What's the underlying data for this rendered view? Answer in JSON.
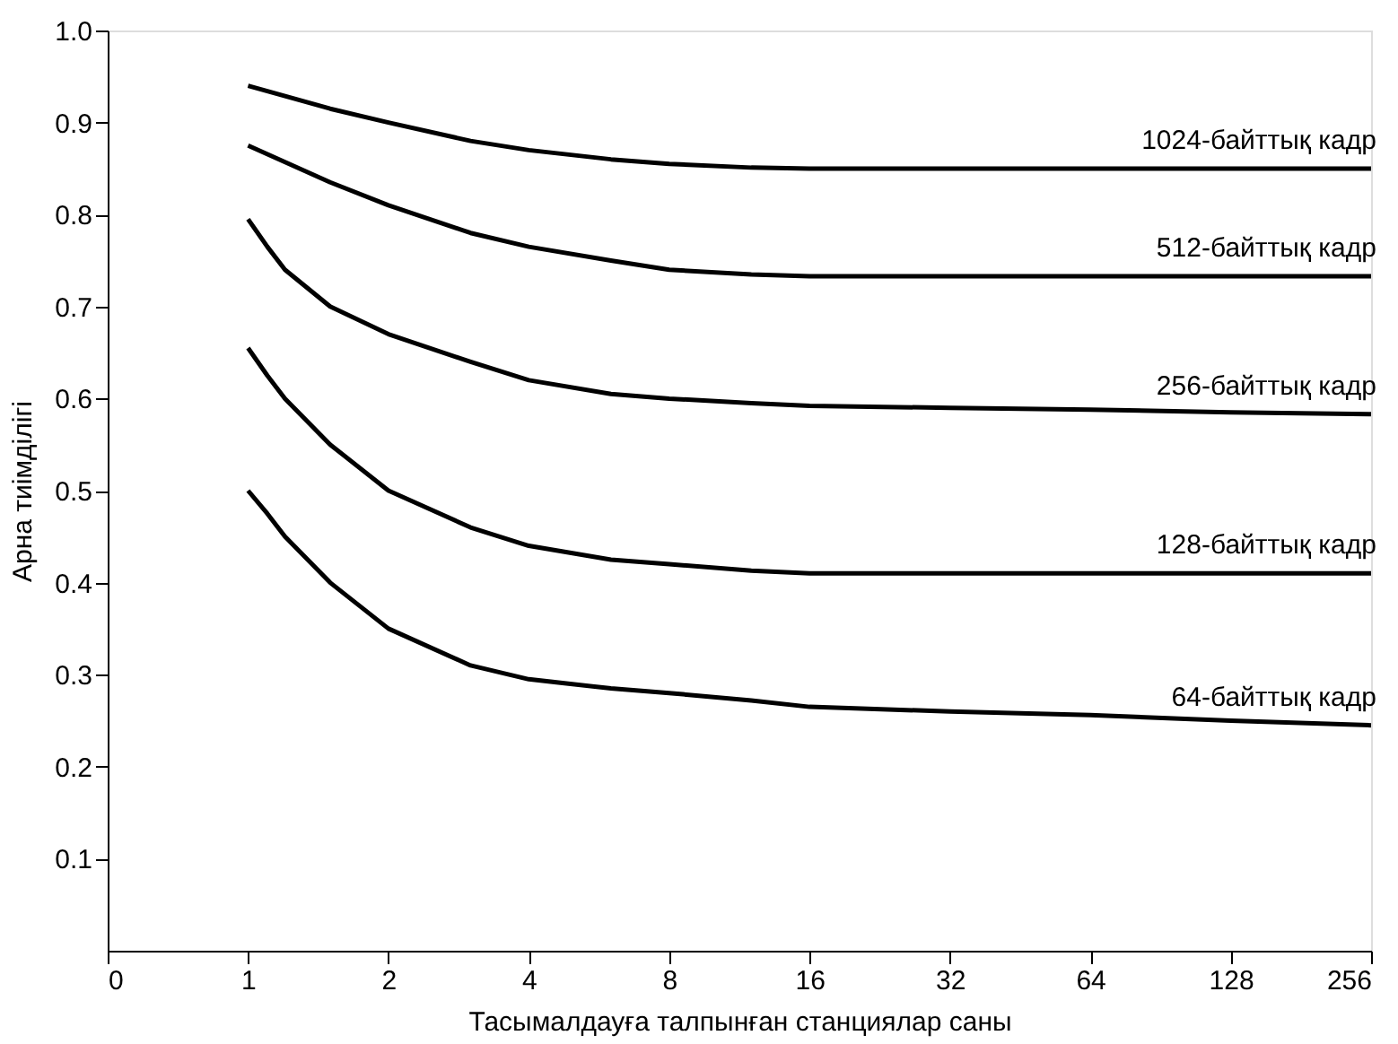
{
  "chart_data": {
    "type": "line",
    "xlabel": "Тасымалдауға талпынған станциялар саны",
    "ylabel": "Арна тиімділігі",
    "log": "x",
    "xlim": [
      0.5,
      256
    ],
    "xticks": [
      {
        "value": 0.5,
        "label": "0"
      },
      1,
      2,
      4,
      8,
      16,
      32,
      64,
      128,
      256
    ],
    "ylim": [
      0,
      1
    ],
    "yticks": [
      {
        "value": 0.1,
        "label": "0.1"
      },
      {
        "value": 0.2,
        "label": "0.2"
      },
      {
        "value": 0.3,
        "label": "0.3"
      },
      {
        "value": 0.4,
        "label": "0.4"
      },
      {
        "value": 0.5,
        "label": "0.5"
      },
      {
        "value": 0.6,
        "label": "0.6"
      },
      {
        "value": 0.7,
        "label": "0.7"
      },
      {
        "value": 0.8,
        "label": "0.8"
      },
      {
        "value": 0.9,
        "label": "0.9"
      },
      {
        "value": 1,
        "label": "1.0"
      }
    ],
    "grid": false,
    "marker": "none",
    "line_style": "solid",
    "series": [
      {
        "name": "1024-байттық кадр",
        "color": "#000000",
        "x": [
          1,
          1.5,
          2,
          3,
          4,
          6,
          8,
          12,
          16,
          32,
          64,
          128,
          256
        ],
        "values": [
          0.94,
          0.915,
          0.9,
          0.88,
          0.87,
          0.86,
          0.855,
          0.851,
          0.85,
          0.85,
          0.85,
          0.85,
          0.85
        ]
      },
      {
        "name": "512-байттық кадр",
        "color": "#000000",
        "x": [
          1,
          1.5,
          2,
          3,
          4,
          6,
          8,
          12,
          16,
          32,
          64,
          128,
          256
        ],
        "values": [
          0.875,
          0.835,
          0.81,
          0.78,
          0.765,
          0.75,
          0.74,
          0.735,
          0.733,
          0.733,
          0.733,
          0.733,
          0.733
        ]
      },
      {
        "name": "256-байттық кадр",
        "color": "#000000",
        "x": [
          1,
          1.1,
          1.2,
          1.5,
          2,
          3,
          4,
          6,
          8,
          12,
          16,
          32,
          64,
          128,
          256
        ],
        "values": [
          0.795,
          0.765,
          0.74,
          0.7,
          0.67,
          0.64,
          0.62,
          0.605,
          0.6,
          0.595,
          0.592,
          0.59,
          0.588,
          0.585,
          0.583
        ]
      },
      {
        "name": "128-байттық кадр",
        "color": "#000000",
        "x": [
          1,
          1.1,
          1.2,
          1.5,
          2,
          3,
          4,
          6,
          8,
          12,
          16,
          32,
          64,
          128,
          256
        ],
        "values": [
          0.655,
          0.625,
          0.6,
          0.55,
          0.5,
          0.46,
          0.44,
          0.425,
          0.42,
          0.413,
          0.41,
          0.41,
          0.41,
          0.41,
          0.41
        ]
      },
      {
        "name": "64-байттық кадр",
        "color": "#000000",
        "x": [
          1,
          1.1,
          1.2,
          1.5,
          2,
          3,
          4,
          6,
          8,
          12,
          16,
          32,
          64,
          128,
          256
        ],
        "values": [
          0.5,
          0.475,
          0.45,
          0.4,
          0.35,
          0.31,
          0.295,
          0.285,
          0.28,
          0.272,
          0.265,
          0.26,
          0.256,
          0.25,
          0.245
        ]
      }
    ]
  }
}
